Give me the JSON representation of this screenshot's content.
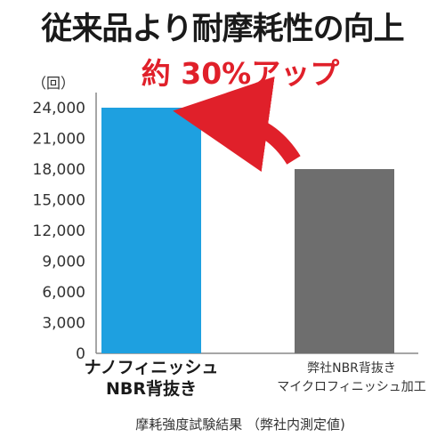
{
  "title": "従来品より耐摩耗性の向上",
  "subtitle": "約 30%アップ",
  "unit_label": "（回）",
  "footnote": "摩耗強度試験結果 （弊社内測定値)",
  "colors": {
    "highlight": "#e0202a",
    "bar_primary": "#1ea0e0",
    "bar_secondary": "#6e6e6e",
    "axis": "#888888"
  },
  "chart_data": {
    "type": "bar",
    "categories": [
      [
        "ナノフィニッシュ",
        "NBR背抜き"
      ],
      [
        "弊社NBR背抜き",
        "マイクロフィニッシュ加工"
      ]
    ],
    "values": [
      24000,
      18000
    ],
    "ylim": [
      0,
      24000
    ],
    "yticks": [
      0,
      3000,
      6000,
      9000,
      12000,
      15000,
      18000,
      21000,
      24000
    ],
    "ytick_labels": [
      "0",
      "3,000",
      "6,000",
      "9,000",
      "12,000",
      "15,000",
      "18,000",
      "21,000",
      "24,000"
    ],
    "grid": false,
    "title": "",
    "xlabel": "",
    "ylabel": ""
  }
}
